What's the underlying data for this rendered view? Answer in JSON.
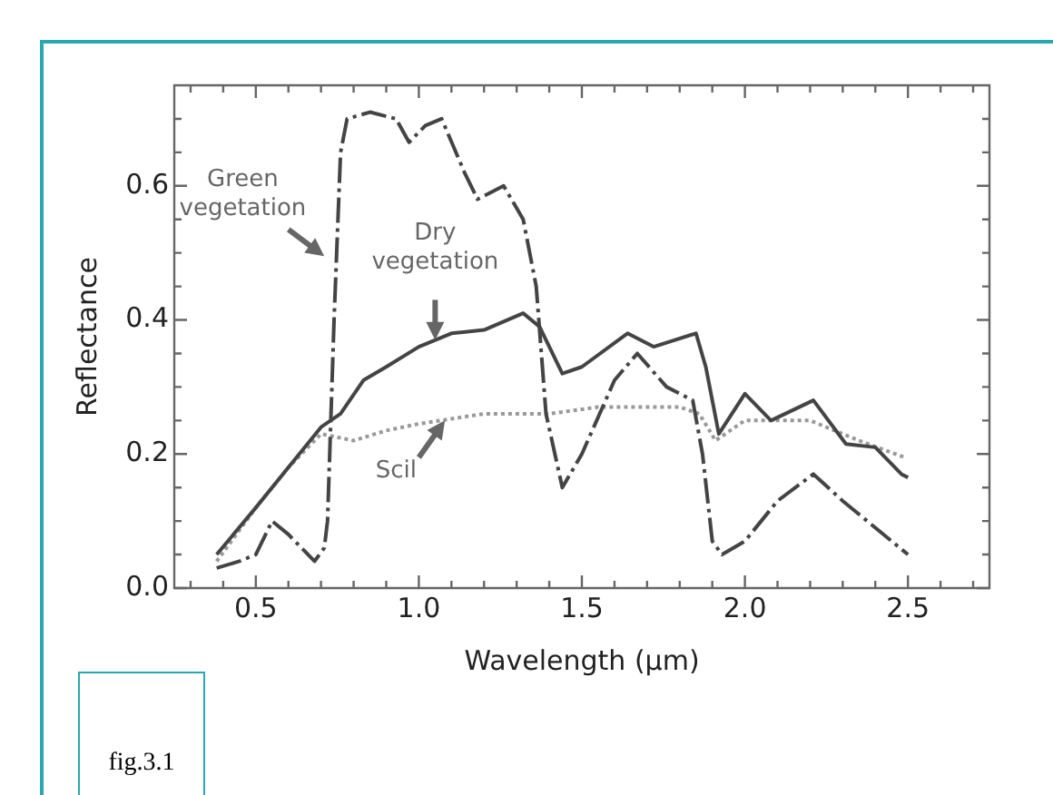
{
  "chart_data": {
    "type": "line",
    "xlabel": "Wavelength (μm)",
    "ylabel": "Reflectance",
    "xlim": [
      0.25,
      2.75
    ],
    "ylim": [
      0,
      0.75
    ],
    "xticks": [
      {
        "value": 0.3,
        "label": null
      },
      {
        "value": 0.4,
        "label": null
      },
      0.5,
      {
        "value": 0.6,
        "label": null
      },
      {
        "value": 0.7,
        "label": null
      },
      {
        "value": 0.8,
        "label": null
      },
      {
        "value": 0.9,
        "label": null
      },
      {
        "value": 1,
        "label": "1.0"
      },
      {
        "value": 1.1,
        "label": null
      },
      {
        "value": 1.2,
        "label": null
      },
      {
        "value": 1.3,
        "label": null
      },
      {
        "value": 1.4,
        "label": null
      },
      1.5,
      {
        "value": 1.6,
        "label": null
      },
      {
        "value": 1.7,
        "label": null
      },
      {
        "value": 1.8,
        "label": null
      },
      {
        "value": 1.9,
        "label": null
      },
      {
        "value": 2,
        "label": "2.0"
      },
      {
        "value": 2.1,
        "label": null
      },
      {
        "value": 2.2,
        "label": null
      },
      {
        "value": 2.3,
        "label": null
      },
      {
        "value": 2.4,
        "label": null
      },
      2.5,
      {
        "value": 2.6,
        "label": null
      },
      {
        "value": 2.7,
        "label": null
      }
    ],
    "yticks": [
      {
        "value": 0,
        "label": "0.0"
      },
      {
        "value": 0.05,
        "label": null
      },
      {
        "value": 0.1,
        "label": null
      },
      {
        "value": 0.15,
        "label": null
      },
      0.2,
      {
        "value": 0.25,
        "label": null
      },
      {
        "value": 0.3,
        "label": null
      },
      {
        "value": 0.35,
        "label": null
      },
      0.4,
      {
        "value": 0.45,
        "label": null
      },
      {
        "value": 0.5,
        "label": null
      },
      {
        "value": 0.55,
        "label": null
      },
      0.6,
      {
        "value": 0.65,
        "label": null
      },
      {
        "value": 0.7,
        "label": null
      }
    ],
    "grid": false,
    "legend": false,
    "marker": "none",
    "series": [
      {
        "name": "Green vegetation",
        "color": "#444444",
        "line_style": "dashed",
        "x": [
          0.38,
          0.45,
          0.5,
          0.55,
          0.6,
          0.68,
          0.71,
          0.72,
          0.74,
          0.76,
          0.78,
          0.85,
          0.93,
          0.97,
          1.02,
          1.07,
          1.14,
          1.18,
          1.26,
          1.32,
          1.36,
          1.39,
          1.44,
          1.5,
          1.6,
          1.67,
          1.76,
          1.84,
          1.87,
          1.9,
          1.93,
          2.0,
          2.1,
          2.21,
          2.3,
          2.4,
          2.5
        ],
        "values": [
          0.03,
          0.04,
          0.05,
          0.1,
          0.08,
          0.04,
          0.06,
          0.1,
          0.4,
          0.65,
          0.7,
          0.71,
          0.7,
          0.665,
          0.69,
          0.7,
          0.62,
          0.58,
          0.6,
          0.55,
          0.45,
          0.26,
          0.15,
          0.2,
          0.31,
          0.35,
          0.3,
          0.28,
          0.2,
          0.07,
          0.05,
          0.07,
          0.13,
          0.17,
          0.13,
          0.09,
          0.05
        ]
      },
      {
        "name": "Dry vegetation",
        "color": "#444444",
        "line_style": "solid",
        "x": [
          0.38,
          0.5,
          0.6,
          0.7,
          0.76,
          0.83,
          0.9,
          1.0,
          1.1,
          1.2,
          1.32,
          1.37,
          1.44,
          1.5,
          1.64,
          1.72,
          1.85,
          1.88,
          1.92,
          2.0,
          2.08,
          2.21,
          2.31,
          2.4,
          2.48,
          2.5
        ],
        "values": [
          0.05,
          0.12,
          0.18,
          0.24,
          0.26,
          0.31,
          0.33,
          0.36,
          0.38,
          0.385,
          0.41,
          0.39,
          0.32,
          0.33,
          0.38,
          0.36,
          0.38,
          0.33,
          0.23,
          0.29,
          0.25,
          0.28,
          0.215,
          0.21,
          0.17,
          0.165
        ]
      },
      {
        "name": "Scil",
        "color": "#999999",
        "line_style": "dotted",
        "x": [
          0.38,
          0.5,
          0.6,
          0.7,
          0.8,
          0.9,
          1.0,
          1.2,
          1.4,
          1.55,
          1.8,
          1.86,
          1.91,
          2.0,
          2.2,
          2.35,
          2.49
        ],
        "values": [
          0.04,
          0.12,
          0.18,
          0.23,
          0.22,
          0.235,
          0.245,
          0.26,
          0.26,
          0.27,
          0.27,
          0.26,
          0.22,
          0.25,
          0.25,
          0.22,
          0.195
        ]
      }
    ],
    "annotations": [
      "fig.3.1"
    ]
  }
}
